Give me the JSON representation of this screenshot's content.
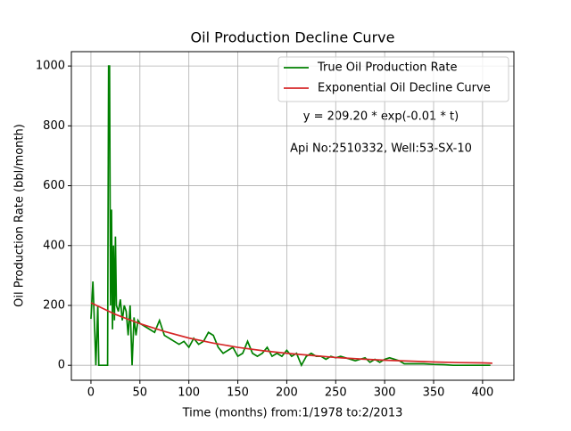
{
  "chart_data": {
    "type": "line",
    "title": "Oil Production Decline Curve",
    "xlabel": "Time (months) from:1/1978 to:2/2013",
    "ylabel": "Oil Production Rate (bbl/month)",
    "annotations": [
      "y = 209.20 * exp(-0.01 * t)",
      "Api No:2510332, Well:53-SX-10"
    ],
    "xlim": [
      -20,
      432
    ],
    "ylim": [
      -50,
      1048
    ],
    "xticks": [
      0,
      50,
      100,
      150,
      200,
      250,
      300,
      350,
      400
    ],
    "yticks": [
      0,
      200,
      400,
      600,
      800,
      1000
    ],
    "grid": true,
    "legend": "upper right",
    "series": [
      {
        "name": "True Oil Production Rate",
        "color": "#008000",
        "x": [
          0,
          2,
          4,
          5,
          7,
          8,
          10,
          12,
          17,
          18,
          19,
          20,
          21,
          22,
          23,
          24,
          25,
          26,
          28,
          30,
          32,
          34,
          36,
          38,
          40,
          42,
          44,
          46,
          48,
          50,
          55,
          60,
          65,
          70,
          75,
          80,
          85,
          90,
          95,
          100,
          105,
          110,
          115,
          120,
          125,
          130,
          135,
          140,
          145,
          150,
          155,
          160,
          165,
          170,
          175,
          180,
          185,
          190,
          195,
          200,
          205,
          210,
          215,
          220,
          225,
          230,
          235,
          240,
          245,
          250,
          255,
          260,
          265,
          270,
          275,
          280,
          285,
          290,
          295,
          300,
          305,
          310,
          315,
          320,
          330,
          340,
          350,
          360,
          370,
          380,
          390,
          400,
          408
        ],
        "values": [
          155,
          280,
          100,
          0,
          200,
          0,
          0,
          0,
          0,
          1000,
          1000,
          200,
          520,
          120,
          400,
          150,
          430,
          200,
          180,
          220,
          150,
          200,
          180,
          100,
          200,
          0,
          160,
          100,
          150,
          140,
          130,
          120,
          110,
          150,
          100,
          90,
          80,
          70,
          80,
          60,
          90,
          70,
          80,
          110,
          100,
          60,
          40,
          50,
          60,
          30,
          40,
          80,
          40,
          30,
          40,
          60,
          30,
          40,
          30,
          50,
          30,
          40,
          0,
          30,
          40,
          30,
          30,
          20,
          30,
          25,
          30,
          25,
          20,
          15,
          20,
          25,
          10,
          20,
          10,
          20,
          25,
          20,
          15,
          5,
          5,
          5,
          3,
          2,
          0,
          0,
          0,
          0,
          0
        ]
      },
      {
        "name": "Exponential Oil Decline Curve",
        "color": "#d62728",
        "x": [
          0,
          25,
          50,
          75,
          100,
          125,
          150,
          175,
          200,
          225,
          250,
          275,
          300,
          325,
          350,
          375,
          400,
          410
        ],
        "values": [
          209,
          170,
          139,
          113,
          91,
          74,
          60,
          49,
          40,
          33,
          26,
          21,
          17,
          14,
          11,
          9,
          8,
          7
        ]
      }
    ]
  }
}
